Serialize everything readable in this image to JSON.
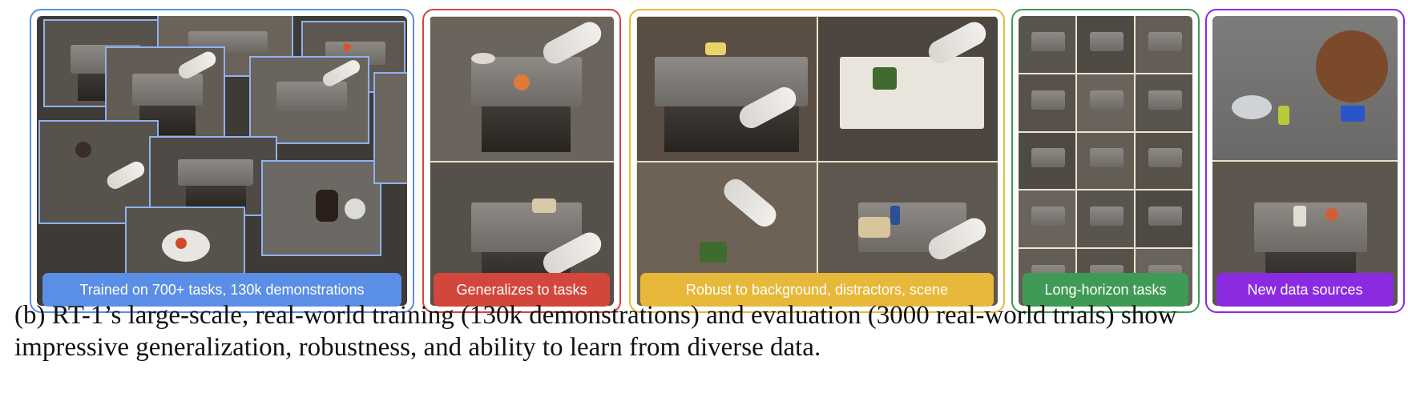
{
  "panels": [
    {
      "id": "trained",
      "label": "Trained on 700+ tasks, 130k demonstrations",
      "border_color": "#5b8ee6",
      "label_color": "#5b8ee6"
    },
    {
      "id": "generalizes",
      "label": "Generalizes to tasks",
      "border_color": "#d2463b",
      "label_color": "#d2463b"
    },
    {
      "id": "robust",
      "label": "Robust to background, distractors, scene",
      "border_color": "#e7b83a",
      "label_color": "#e7b83a"
    },
    {
      "id": "long-horizon",
      "label": "Long-horizon tasks",
      "border_color": "#3f9a55",
      "label_color": "#3f9a55"
    },
    {
      "id": "new-data",
      "label": "New data sources",
      "border_color": "#8a2be2",
      "label_color": "#8a2be2"
    }
  ],
  "caption": {
    "line1": "(b) RT-1’s large-scale, real-world training (130k demonstrations) and evaluation (3000 real-world trials) show",
    "line2": "impressive generalization, robustness, and ability to learn from diverse data."
  }
}
